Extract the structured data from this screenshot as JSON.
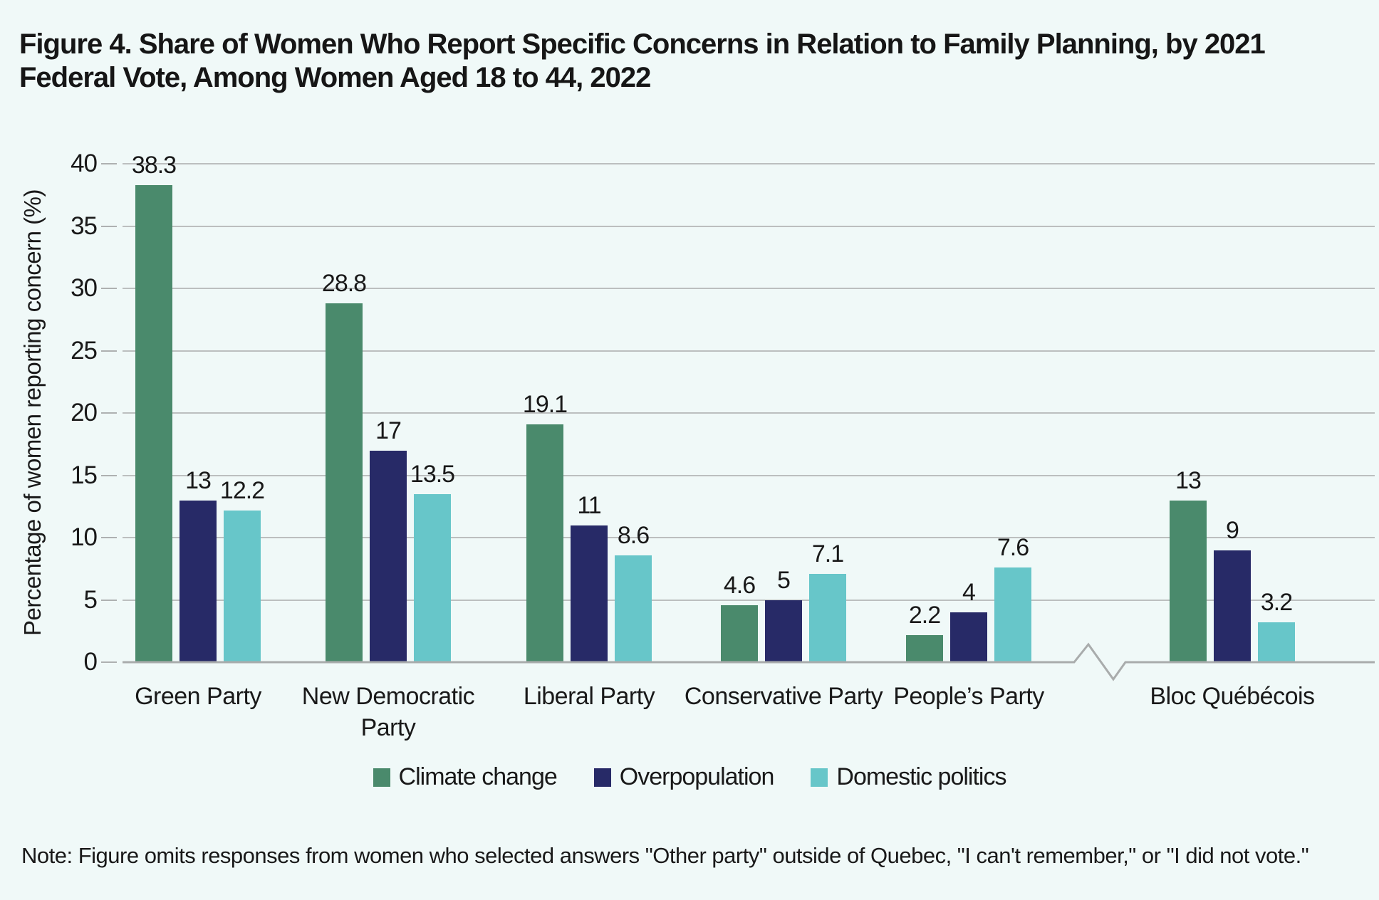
{
  "figure": {
    "title": "Figure 4. Share of Women Who Report Specific Concerns in Relation to Family Planning, by 2021 Federal Vote, Among Women Aged 18 to 44, 2022",
    "note": "Note: Figure omits responses from women who selected answers \"Other party\" outside of Quebec, \"I can't remember,\" or \"I did not vote.\""
  },
  "chart_data": {
    "type": "bar",
    "title": "Figure 4. Share of Women Who Report Specific Concerns in Relation to Family Planning, by 2021 Federal Vote, Among Women Aged 18 to 44, 2022",
    "xlabel": "",
    "ylabel": "Percentage of women reporting concern (%)",
    "ylim": [
      0,
      40
    ],
    "yticks": [
      0,
      5,
      10,
      15,
      20,
      25,
      30,
      35,
      40
    ],
    "grid": true,
    "legend_position": "bottom",
    "axis_break_between": [
      "People's Party",
      "Bloc Québécois"
    ],
    "categories": [
      "Green Party",
      "New Democratic Party",
      "Liberal Party",
      "Conservative Party",
      "People’s Party",
      "Bloc Québécois"
    ],
    "series": [
      {
        "name": "Climate change",
        "color": "#4A8A6C",
        "values": [
          38.3,
          28.8,
          19.1,
          4.6,
          2.2,
          13
        ]
      },
      {
        "name": "Overpopulation",
        "color": "#272A67",
        "values": [
          13,
          17,
          11,
          5,
          4,
          9
        ]
      },
      {
        "name": "Domestic politics",
        "color": "#67C6C9",
        "values": [
          12.2,
          13.5,
          8.6,
          7.1,
          7.6,
          3.2
        ]
      }
    ],
    "colors": {
      "background": "#F0F9F8",
      "gridline": "#BCBFBF",
      "baseline": "#A9ACAC",
      "text": "#191919"
    }
  }
}
